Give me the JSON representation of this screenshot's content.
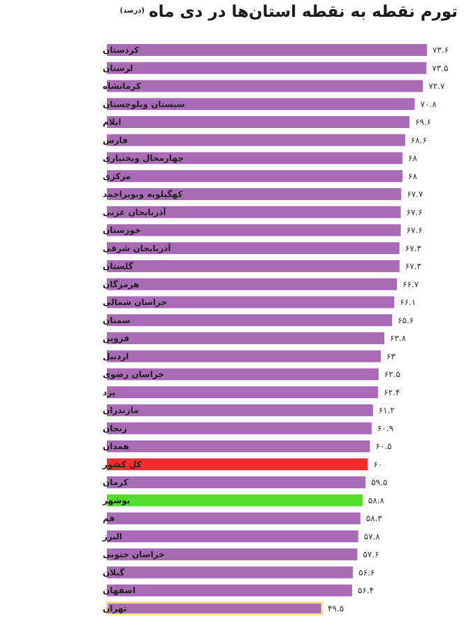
{
  "chart_data": {
    "type": "bar",
    "orientation": "horizontal",
    "title": "تورم نقطه به نقطه استان‌ها در دی ماه",
    "unit": "(درصد)",
    "categories": [
      "کردستان",
      "لرستان",
      "کرمانشاه",
      "سیستان وبلوچستان",
      "ایلام",
      "فارس",
      "چهارمحال وبختیاری",
      "مرکزی",
      "کهگیلویه وبویراحمد",
      "آذربایجان غربی",
      "خوزستان",
      "آذربایجان شرقی",
      "گلستان",
      "هرمزگان",
      "خراسان شمالی",
      "سمنان",
      "قزوین",
      "اردبیل",
      "خراسان رضوی",
      "یزد",
      "مازندران",
      "زنجان",
      "همدان",
      "کل کشور",
      "کرمان",
      "بوشهر",
      "قم",
      "البرز",
      "خراسان جنوبی",
      "گیلان",
      "اصفهان",
      "تهران"
    ],
    "values": [
      73.6,
      73.5,
      72.7,
      70.8,
      69.6,
      68.6,
      68,
      68,
      67.7,
      67.6,
      67.6,
      67.3,
      67.3,
      66.7,
      66.1,
      65.6,
      63.8,
      63,
      62.5,
      62.4,
      61.2,
      60.9,
      60.5,
      60,
      59.5,
      58.8,
      58.3,
      57.8,
      57.6,
      56.6,
      56.4,
      49.5
    ],
    "value_labels": [
      "۷۳.۶",
      "۷۳.۵",
      "۷۲.۷",
      "۷۰.۸",
      "۶۹.۶",
      "۶۸.۶",
      "۶۸",
      "۶۸",
      "۶۷.۷",
      "۶۷.۶",
      "۶۷.۶",
      "۶۷.۳",
      "۶۷.۳",
      "۶۶.۷",
      "۶۶.۱",
      "۶۵.۶",
      "۶۳.۸",
      "۶۳",
      "۶۲.۵",
      "۶۲.۴",
      "۶۱.۲",
      "۶۰.۹",
      "۶۰.۵",
      "۶۰",
      "۵۹.۵",
      "۵۸.۸",
      "۵۸.۳",
      "۵۷.۸",
      "۵۷.۶",
      "۵۶.۶",
      "۵۶.۴",
      "۴۹.۵"
    ],
    "colors": {
      "default": "#A86CB4",
      "highlight_national": "#EE2D2D",
      "highlight_bushehr": "#55DD2C",
      "tehran_border": "#F2E58E",
      "national_label": "#EE2D2D"
    },
    "highlights": {
      "کل کشور": "highlight_national",
      "بوشهر": "highlight_bushehr"
    },
    "grid": false,
    "legend": "none"
  }
}
